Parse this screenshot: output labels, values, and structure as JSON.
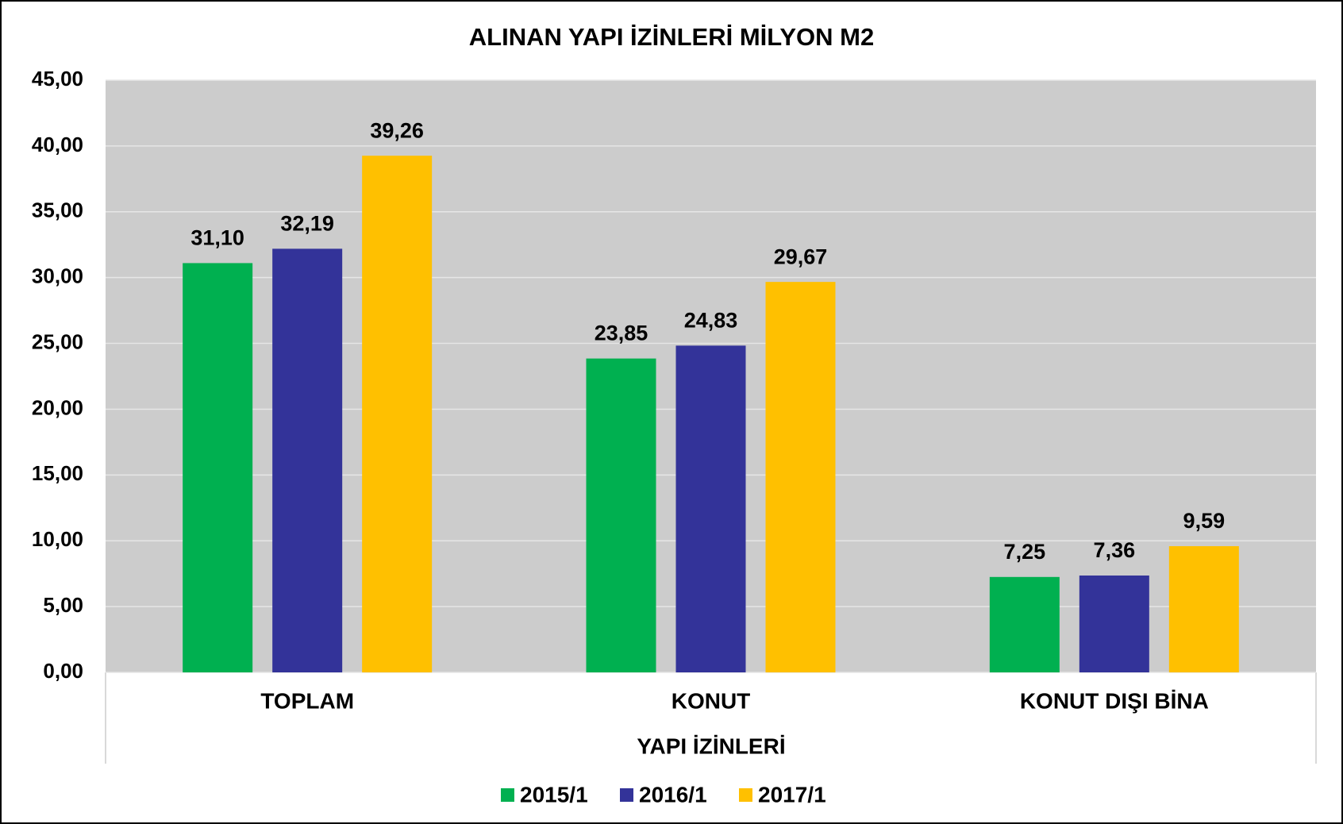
{
  "chart_data": {
    "type": "bar",
    "title": "ALINAN YAPI İZİNLERİ MİLYON M2",
    "x_label": "YAPI İZİNLERİ",
    "categories": [
      "TOPLAM",
      "KONUT",
      "KONUT DIŞI BİNA"
    ],
    "series": [
      {
        "name": "2015/1",
        "color": "#00b050",
        "values": [
          31.1,
          23.85,
          7.25
        ],
        "value_labels": [
          "31,10",
          "23,85",
          "7,25"
        ]
      },
      {
        "name": "2016/1",
        "color": "#333399",
        "values": [
          32.19,
          24.83,
          7.36
        ],
        "value_labels": [
          "32,19",
          "24,83",
          "7,36"
        ]
      },
      {
        "name": "2017/1",
        "color": "#ffc000",
        "values": [
          39.26,
          29.67,
          9.59
        ],
        "value_labels": [
          "39,26",
          "29,67",
          "9,59"
        ]
      }
    ],
    "ylim": [
      0,
      45
    ],
    "yticks": [
      {
        "value": 0,
        "label": "0,00"
      },
      {
        "value": 5,
        "label": "5,00"
      },
      {
        "value": 10,
        "label": "10,00"
      },
      {
        "value": 15,
        "label": "15,00"
      },
      {
        "value": 20,
        "label": "20,00"
      },
      {
        "value": 25,
        "label": "25,00"
      },
      {
        "value": 30,
        "label": "30,00"
      },
      {
        "value": 35,
        "label": "35,00"
      },
      {
        "value": 40,
        "label": "40,00"
      },
      {
        "value": 45,
        "label": "45,00"
      }
    ],
    "grid": true,
    "legend": "bottom"
  }
}
